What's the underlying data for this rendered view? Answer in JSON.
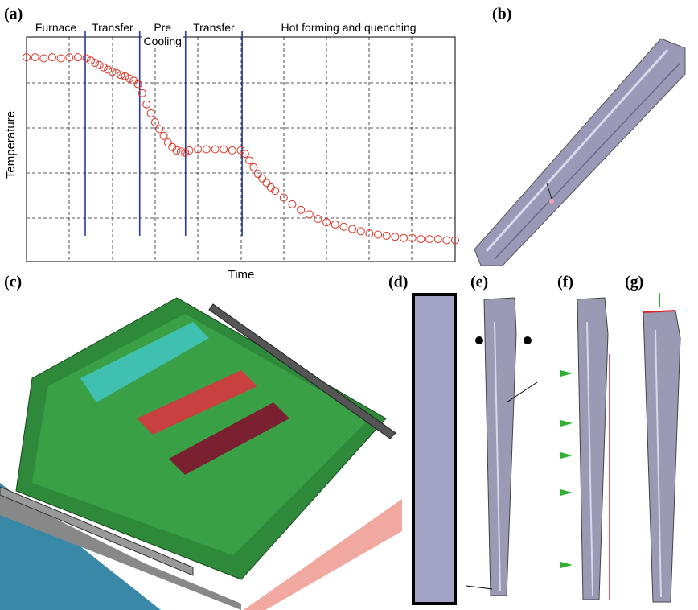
{
  "panels": {
    "a": "(a)",
    "b": "(b)",
    "c": "(c)",
    "d": "(d)",
    "e": "(e)",
    "f": "(f)",
    "g": "(g)"
  },
  "chart_data": {
    "type": "scatter",
    "x_label": "Time",
    "y_label": "Temperature",
    "phases": [
      "Furnace",
      "Transfer",
      "Pre Cooling",
      "Transfer",
      "Hot forming and quenching"
    ],
    "phase_boundaries": [
      13.7,
      26.4,
      37.1,
      50.3
    ],
    "boundary_color": "#2a3a9c",
    "color": "#e03020",
    "xlim": [
      0,
      100
    ],
    "ylim": [
      0,
      100
    ],
    "x": [
      0,
      2,
      4,
      6,
      8,
      10,
      12,
      14,
      15,
      16,
      17,
      18,
      19,
      20,
      21,
      22,
      23,
      24,
      25,
      26,
      27,
      28,
      29,
      30,
      31,
      32,
      33,
      34,
      35,
      36,
      37,
      38,
      40,
      42,
      44,
      46,
      48,
      50,
      51,
      52,
      53,
      54,
      55,
      56,
      57,
      58,
      60,
      62,
      64,
      66,
      68,
      70,
      72,
      74,
      76,
      78,
      80,
      82,
      84,
      86,
      88,
      90,
      92,
      94,
      96,
      98,
      100
    ],
    "values": [
      91,
      91,
      90.5,
      91,
      90.5,
      91,
      91,
      90.5,
      89.5,
      88.5,
      87.5,
      86.5,
      85.5,
      84.5,
      84,
      83,
      82.5,
      81.5,
      80.5,
      79,
      75,
      70,
      66,
      62,
      59,
      56,
      53,
      51,
      49.5,
      49,
      48.5,
      49.5,
      50,
      50,
      50,
      50,
      49.5,
      49.5,
      48,
      45,
      42,
      39,
      37,
      35,
      33,
      31.5,
      28.5,
      25.5,
      23,
      21,
      19,
      17.5,
      16.5,
      15.5,
      14.5,
      13.5,
      12.5,
      12,
      11.5,
      11,
      10.5,
      10.5,
      10,
      10,
      10,
      9.5,
      9.5
    ]
  }
}
